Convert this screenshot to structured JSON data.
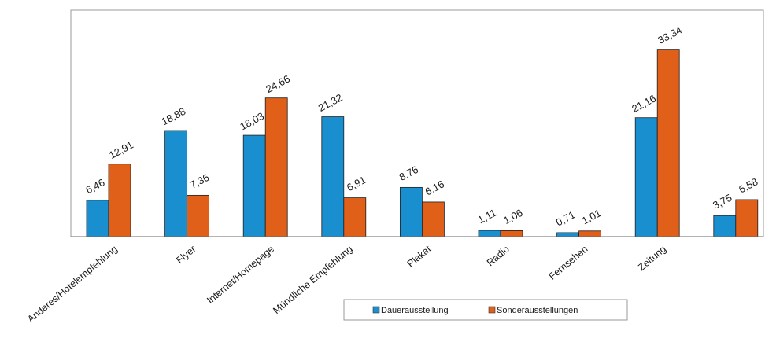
{
  "chart_data": {
    "type": "bar",
    "categories": [
      "Anderes/Hotelempfehlung",
      "Flyer",
      "Internet/Homepage",
      "Mündliche Empfehlung",
      "Plakat",
      "Radio",
      "Fernsehen",
      "Zeitung",
      ""
    ],
    "series": [
      {
        "name": "Dauerausstellung",
        "values": [
          6.46,
          18.88,
          18.03,
          21.32,
          8.76,
          1.11,
          0.71,
          21.16,
          3.75
        ],
        "labels": [
          "6,46",
          "18,88",
          "18,03",
          "21,32",
          "8,76",
          "1,11",
          "0,71",
          "21,16",
          "3,75"
        ],
        "color": "#1a8fd0"
      },
      {
        "name": "Sonderausstellungen",
        "values": [
          12.91,
          7.36,
          24.66,
          6.91,
          6.16,
          1.06,
          1.01,
          33.34,
          6.58
        ],
        "labels": [
          "12,91",
          "7,36",
          "24,66",
          "6,91",
          "6,16",
          "1,06",
          "1,01",
          "33,34",
          "6,58"
        ],
        "color": "#e0601a"
      }
    ],
    "title": "",
    "xlabel": "",
    "ylabel": "",
    "ylim": [
      0,
      36
    ],
    "grid": false,
    "legend_position": "bottom"
  }
}
